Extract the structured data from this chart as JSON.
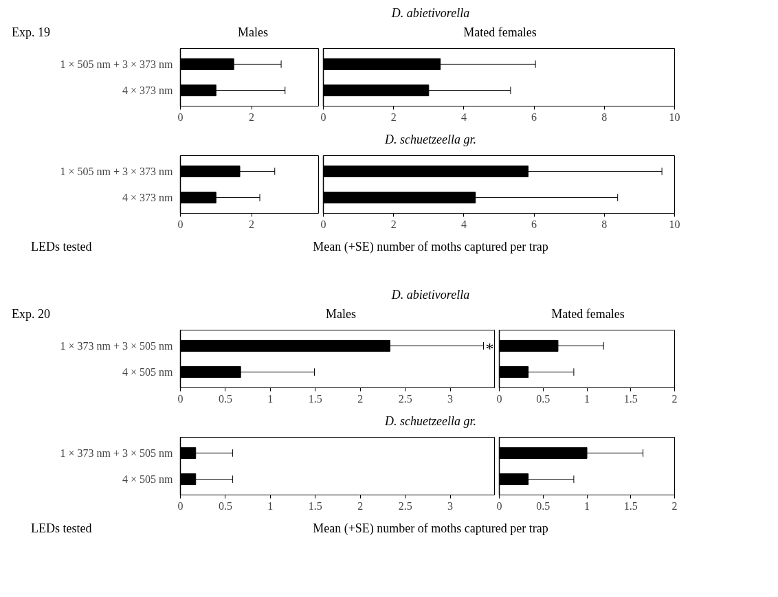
{
  "chart_data": [
    {
      "type": "bar",
      "orientation": "horizontal",
      "subtitle": "Males",
      "annotations": [
        "Exp. 19"
      ],
      "categories": [
        "1 × 505 nm + 3 × 373 nm",
        "4 × 373 nm"
      ],
      "values": [
        1.5,
        1.0
      ],
      "errors": [
        [
          1.5,
          2.83
        ],
        [
          1.0,
          2.94
        ]
      ],
      "color": "#000000",
      "xlim": [
        0,
        3.9
      ],
      "xticks": [
        0,
        2
      ]
    },
    {
      "type": "bar",
      "orientation": "horizontal",
      "title": "D. abietivorella",
      "subtitle": "Mated females",
      "categories": [
        null,
        null
      ],
      "values": [
        3.33,
        3.0
      ],
      "errors": [
        [
          3.33,
          6.04
        ],
        [
          3.0,
          5.33
        ]
      ],
      "color": "#000000",
      "xlim": [
        0,
        10
      ],
      "xticks": [
        0,
        2,
        4,
        6,
        8,
        10
      ],
      "tick_labels": "x"
    },
    {
      "type": "bar",
      "orientation": "horizontal",
      "xlabel": "Mean (+SE) number of moths captured per trap",
      "ylabel": "LEDs tested",
      "categories": [
        "1 × 505 nm + 3 × 373 nm",
        "4 × 373 nm"
      ],
      "values": [
        1.67,
        1.0
      ],
      "errors": [
        [
          1.67,
          2.65
        ],
        [
          1.0,
          2.23
        ]
      ],
      "color": "#000000",
      "xlim": [
        0,
        3.9
      ],
      "xticks": [
        0,
        2
      ]
    },
    {
      "type": "bar",
      "orientation": "horizontal",
      "title": "D. schuetzeella gr.",
      "categories": [
        null,
        null
      ],
      "values": [
        5.83,
        4.33
      ],
      "errors": [
        [
          5.83,
          9.64
        ],
        [
          4.33,
          8.38
        ]
      ],
      "color": "#000000",
      "xlim": [
        0,
        10
      ],
      "xticks": [
        0,
        2,
        4,
        6,
        8,
        10
      ],
      "tick_labels": "x"
    },
    {
      "type": "bar",
      "orientation": "horizontal",
      "title": "D. abietivorella",
      "subtitle": "Males",
      "annotations": [
        "Exp. 20",
        "*"
      ],
      "categories": [
        "1 × 373 nm + 3 × 505 nm",
        "4 × 505 nm"
      ],
      "values": [
        2.33,
        0.67
      ],
      "errors": [
        [
          2.33,
          3.37
        ],
        [
          0.67,
          1.49
        ]
      ],
      "color": "#000000",
      "xlim": [
        0,
        3.5
      ],
      "xticks": [
        0,
        0.5,
        1,
        1.5,
        2,
        2.5,
        3
      ]
    },
    {
      "type": "bar",
      "orientation": "horizontal",
      "subtitle": "Mated females",
      "categories": [
        null,
        null
      ],
      "values": [
        0.67,
        0.33
      ],
      "errors": [
        [
          0.67,
          1.19
        ],
        [
          0.33,
          0.85
        ]
      ],
      "color": "#000000",
      "xlim": [
        0,
        2
      ],
      "xticks": [
        0,
        0.5,
        1,
        1.5,
        2
      ],
      "tick_labels": "x"
    },
    {
      "type": "bar",
      "orientation": "horizontal",
      "title": "D. schuetzeella gr.",
      "xlabel": "Mean (+SE) number of moths captured per trap",
      "ylabel": "LEDs tested",
      "categories": [
        "1 × 373 nm + 3 × 505 nm",
        "4 × 505 nm"
      ],
      "values": [
        0.17,
        0.17
      ],
      "errors": [
        [
          0.17,
          0.58
        ],
        [
          0.17,
          0.58
        ]
      ],
      "color": "#000000",
      "xlim": [
        0,
        3.5
      ],
      "xticks": [
        0,
        0.5,
        1,
        1.5,
        2,
        2.5,
        3
      ]
    },
    {
      "type": "bar",
      "orientation": "horizontal",
      "categories": [
        null,
        null
      ],
      "values": [
        1.0,
        0.33
      ],
      "errors": [
        [
          1.0,
          1.64
        ],
        [
          0.33,
          0.85
        ]
      ],
      "color": "#000000",
      "xlim": [
        0,
        2
      ],
      "xticks": [
        0,
        0.5,
        1,
        1.5,
        2
      ],
      "tick_labels": "x"
    }
  ]
}
